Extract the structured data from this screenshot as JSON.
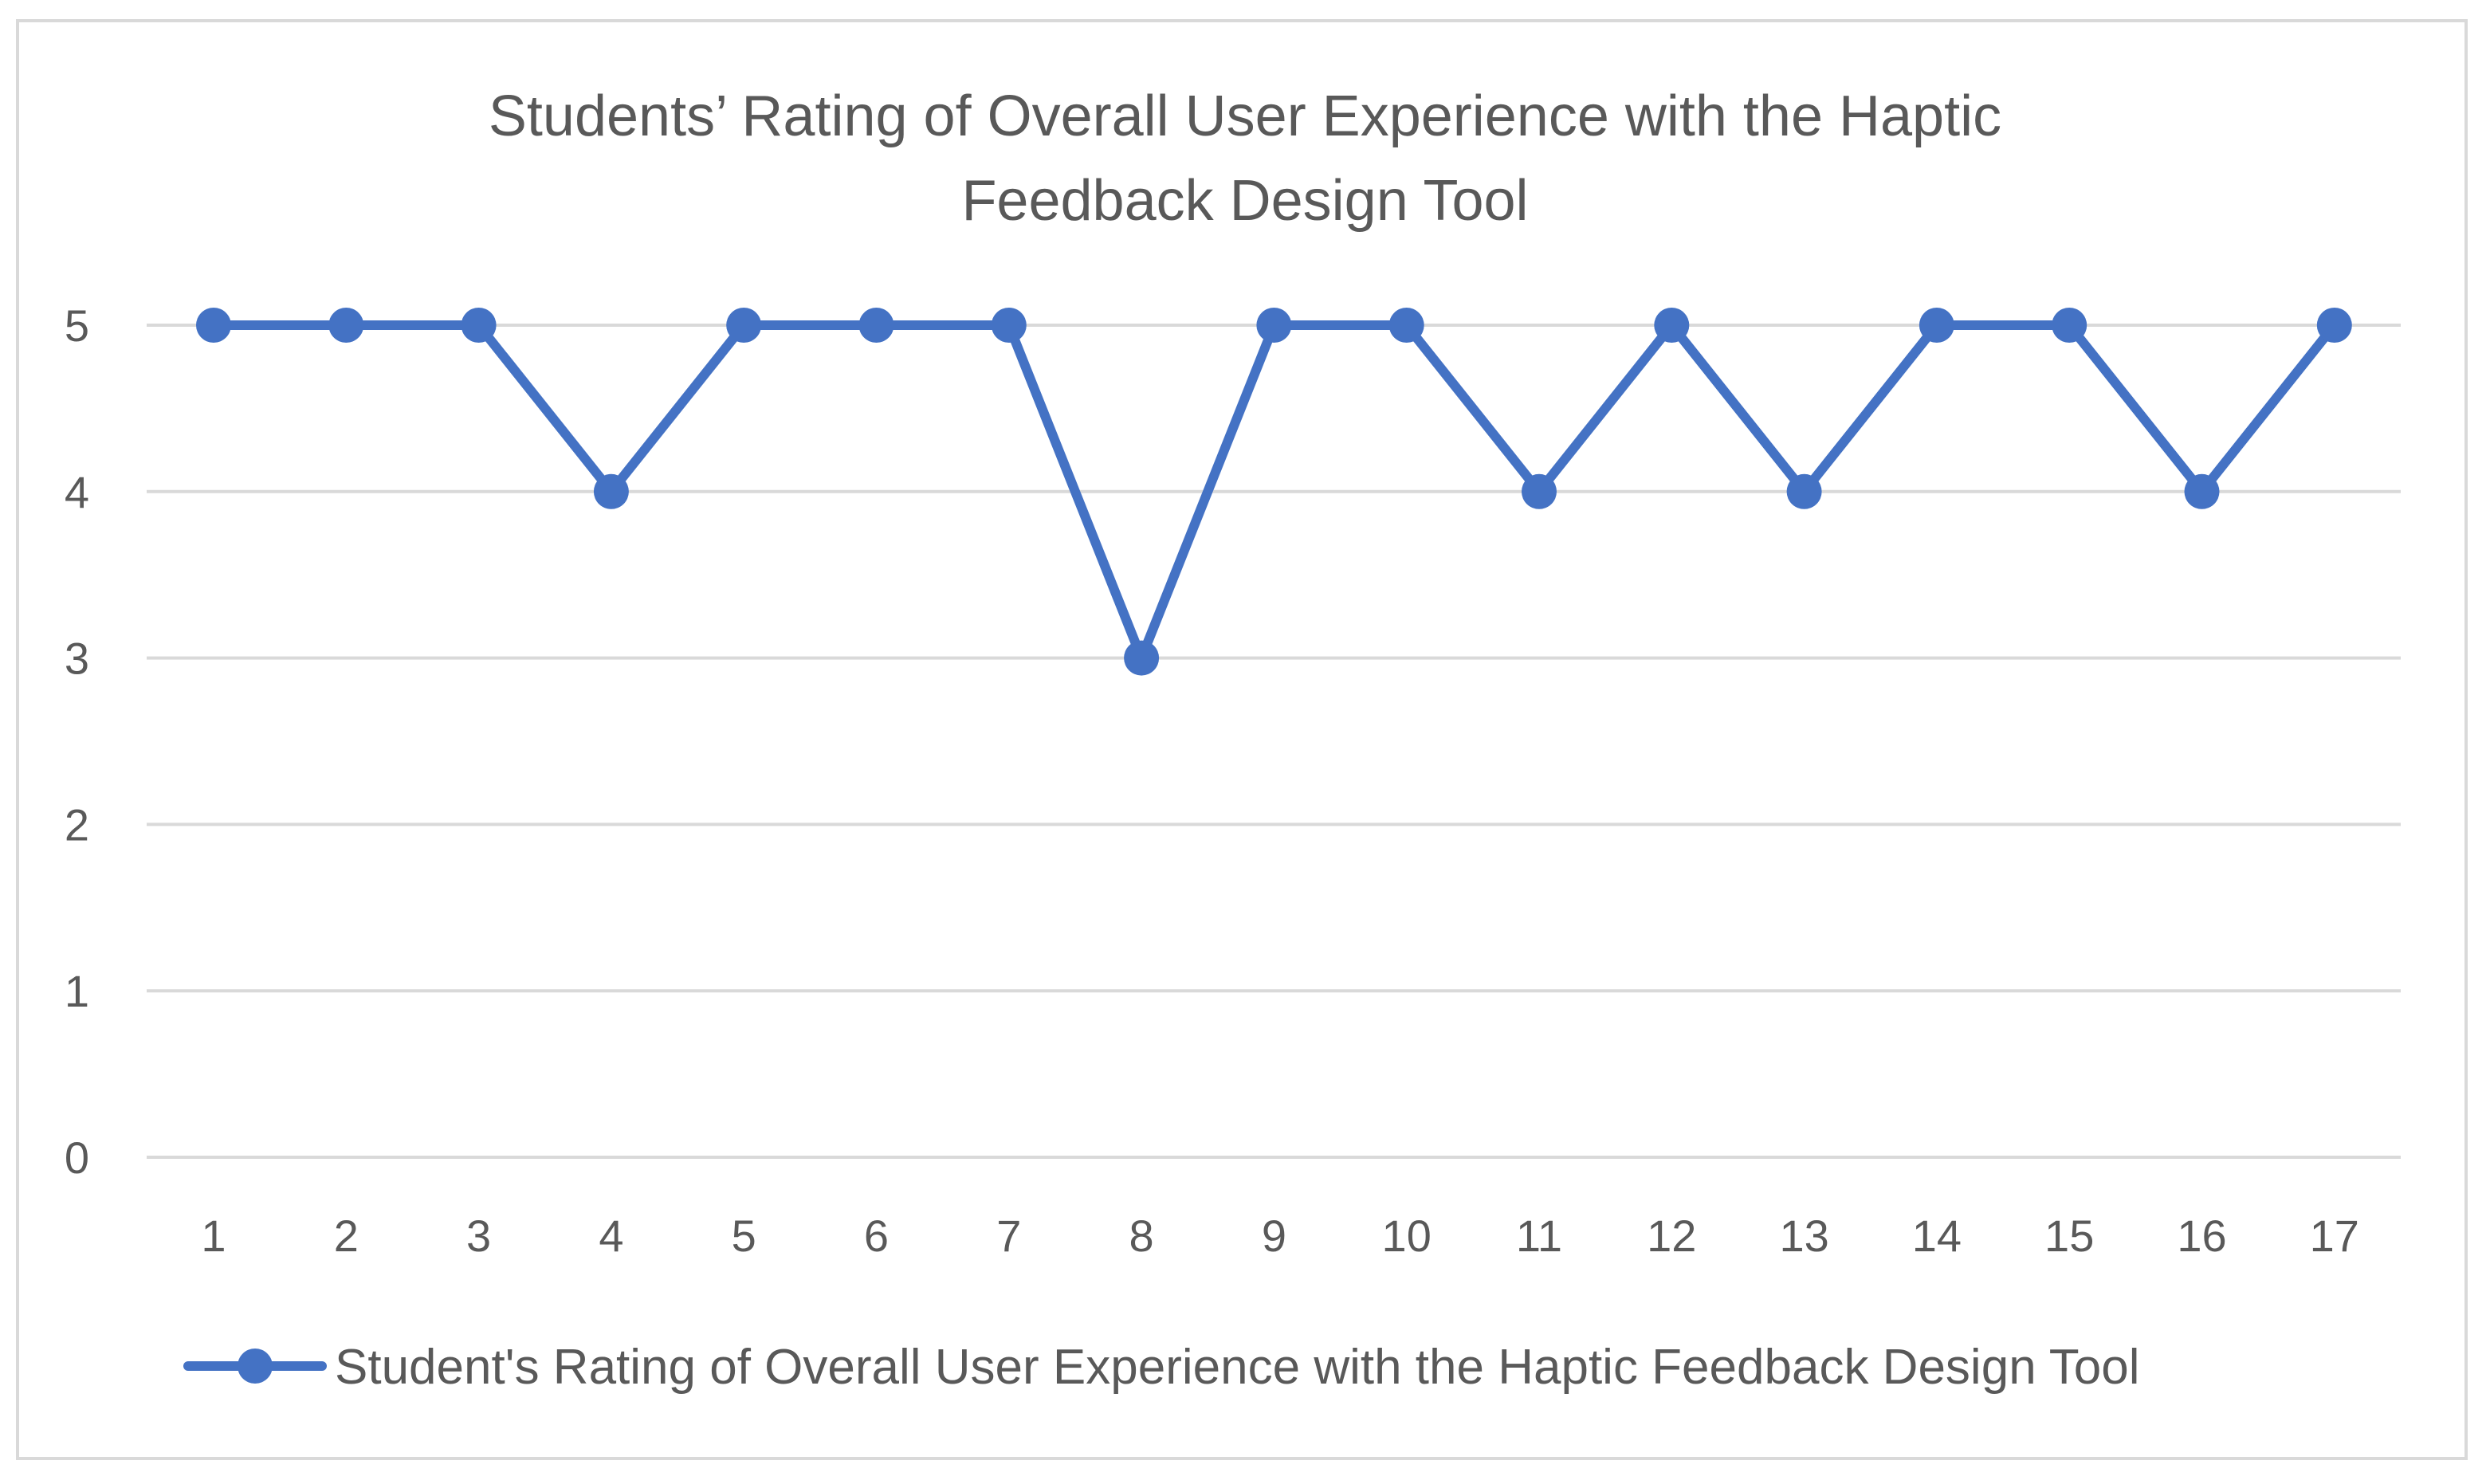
{
  "chart_data": {
    "type": "line",
    "title_lines": [
      "Students’ Rating of Overall User Experience with the Haptic",
      "Feedback Design Tool"
    ],
    "xlabel": "",
    "ylabel": "",
    "x": [
      "1",
      "2",
      "3",
      "4",
      "5",
      "6",
      "7",
      "8",
      "9",
      "10",
      "11",
      "12",
      "13",
      "14",
      "15",
      "16",
      "17"
    ],
    "ylim": [
      0,
      5
    ],
    "yticks": [
      "0",
      "1",
      "2",
      "3",
      "4",
      "5"
    ],
    "grid": true,
    "legend_position": "bottom",
    "series": [
      {
        "name": "Student's Rating of Overall User Experience with the Haptic Feedback Design Tool",
        "values": [
          5,
          5,
          5,
          4,
          5,
          5,
          5,
          3,
          5,
          5,
          4,
          5,
          4,
          5,
          5,
          4,
          5
        ],
        "color": "#4472c4"
      }
    ]
  }
}
